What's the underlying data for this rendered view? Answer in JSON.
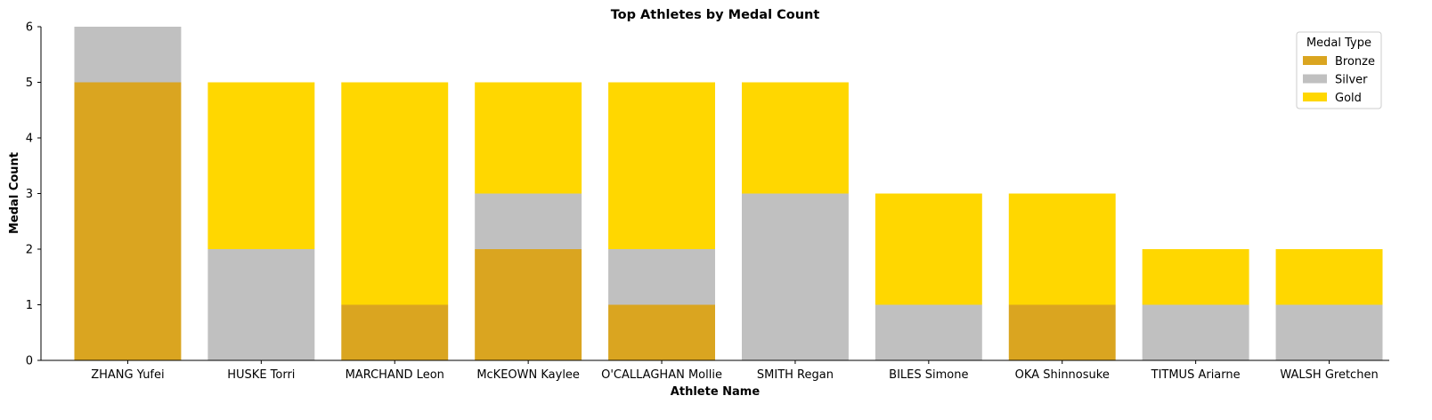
{
  "chart_data": {
    "type": "bar",
    "stacked": true,
    "title": "Top Athletes by Medal Count",
    "xlabel": "Athlete Name",
    "ylabel": "Medal Count",
    "ylim": [
      0,
      6
    ],
    "yticks": [
      0,
      1,
      2,
      3,
      4,
      5,
      6
    ],
    "categories": [
      "ZHANG Yufei",
      "HUSKE Torri",
      "MARCHAND Leon",
      "McKEOWN Kaylee",
      "O'CALLAGHAN Mollie",
      "SMITH Regan",
      "BILES Simone",
      "OKA Shinnosuke",
      "TITMUS Ariarne",
      "WALSH Gretchen"
    ],
    "series": [
      {
        "name": "Bronze",
        "color": "#DAA520",
        "values": [
          5,
          0,
          1,
          2,
          1,
          0,
          0,
          1,
          0,
          0
        ]
      },
      {
        "name": "Silver",
        "color": "#C0C0C0",
        "values": [
          1,
          2,
          0,
          1,
          1,
          3,
          1,
          0,
          1,
          1
        ]
      },
      {
        "name": "Gold",
        "color": "#FFD700",
        "values": [
          0,
          3,
          4,
          2,
          3,
          2,
          2,
          2,
          1,
          1
        ]
      }
    ],
    "legend": {
      "title": "Medal Type",
      "position": "top-right"
    },
    "grid": false
  }
}
